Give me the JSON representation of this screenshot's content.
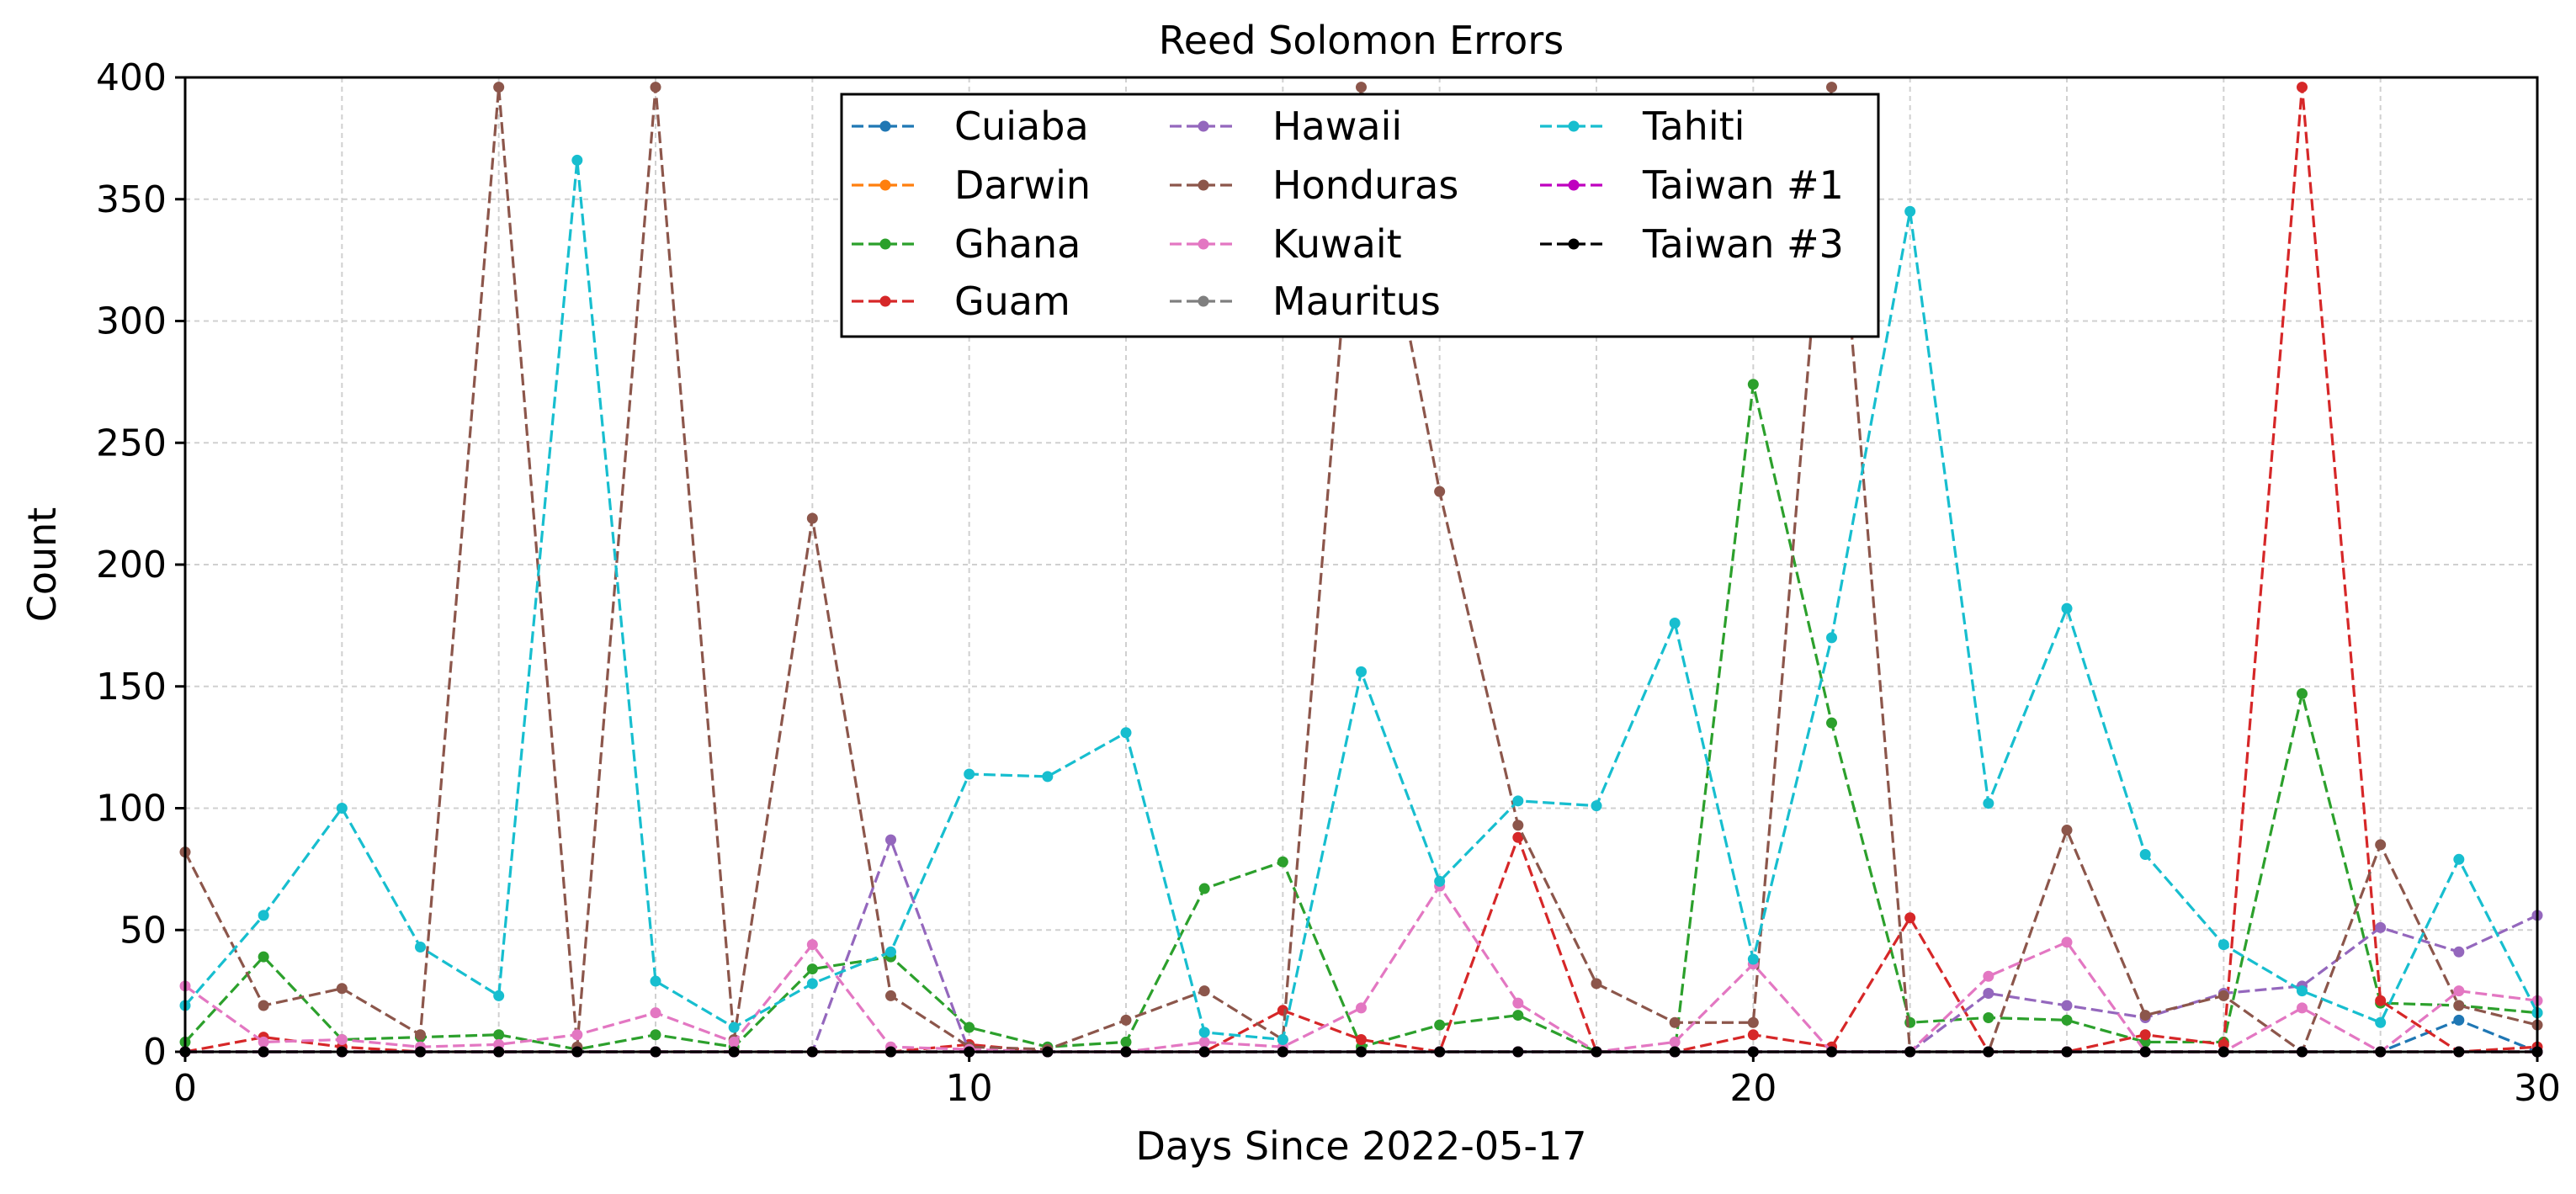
{
  "chart_data": {
    "type": "line",
    "title": "Reed Solomon Errors",
    "xlabel": "Days Since 2022-05-17",
    "ylabel": "Count",
    "xlim": [
      0,
      30
    ],
    "ylim": [
      0,
      400
    ],
    "xticks": [
      0,
      10,
      20,
      30
    ],
    "yticks": [
      0,
      50,
      100,
      150,
      200,
      250,
      300,
      350,
      400
    ],
    "grid": true,
    "legend_position": "top-center",
    "x": [
      0,
      1,
      2,
      3,
      4,
      5,
      6,
      7,
      8,
      9,
      10,
      11,
      12,
      13,
      14,
      15,
      16,
      17,
      18,
      19,
      20,
      21,
      22,
      23,
      24,
      25,
      26,
      27,
      28,
      29,
      30
    ],
    "series": [
      {
        "name": "Cuiaba",
        "color": "#1f77b4",
        "values": [
          0,
          0,
          0,
          0,
          0,
          0,
          0,
          0,
          0,
          0,
          0,
          0,
          0,
          0,
          0,
          0,
          0,
          0,
          0,
          0,
          0,
          0,
          0,
          0,
          0,
          0,
          0,
          0,
          0,
          13,
          0
        ]
      },
      {
        "name": "Darwin",
        "color": "#ff7f0e",
        "values": [
          0,
          0,
          0,
          0,
          0,
          0,
          0,
          0,
          0,
          0,
          0,
          0,
          0,
          0,
          0,
          0,
          0,
          0,
          0,
          0,
          0,
          0,
          0,
          0,
          0,
          0,
          0,
          0,
          0,
          0,
          0
        ]
      },
      {
        "name": "Ghana",
        "color": "#2ca02c",
        "values": [
          4,
          39,
          5,
          6,
          7,
          1,
          7,
          2,
          34,
          39,
          10,
          2,
          4,
          67,
          78,
          2,
          11,
          15,
          0,
          0,
          274,
          135,
          12,
          14,
          13,
          4,
          4,
          147,
          20,
          19,
          16
        ]
      },
      {
        "name": "Guam",
        "color": "#d62728",
        "values": [
          0,
          6,
          2,
          0,
          0,
          0,
          0,
          0,
          0,
          0,
          3,
          0,
          0,
          0,
          17,
          5,
          0,
          88,
          0,
          0,
          7,
          2,
          55,
          0,
          0,
          7,
          3,
          396,
          21,
          0,
          2
        ]
      },
      {
        "name": "Hawaii",
        "color": "#9467bd",
        "values": [
          0,
          0,
          0,
          0,
          0,
          0,
          0,
          0,
          0,
          87,
          0,
          0,
          0,
          0,
          0,
          0,
          0,
          0,
          0,
          0,
          0,
          0,
          0,
          24,
          19,
          14,
          24,
          27,
          51,
          41,
          56
        ]
      },
      {
        "name": "Honduras",
        "color": "#8c564b",
        "values": [
          82,
          19,
          26,
          7,
          396,
          2,
          396,
          5,
          219,
          23,
          2,
          1,
          13,
          25,
          5,
          396,
          230,
          93,
          28,
          12,
          12,
          396,
          0,
          0,
          91,
          15,
          23,
          0,
          85,
          19,
          11
        ]
      },
      {
        "name": "Kuwait",
        "color": "#e377c2",
        "values": [
          27,
          4,
          5,
          2,
          3,
          7,
          16,
          4,
          44,
          2,
          1,
          0,
          0,
          4,
          2,
          18,
          68,
          20,
          0,
          4,
          36,
          0,
          0,
          31,
          45,
          0,
          0,
          18,
          0,
          25,
          21
        ]
      },
      {
        "name": "Mauritus",
        "color": "#7f7f7f",
        "values": [
          0,
          0,
          0,
          0,
          0,
          0,
          0,
          0,
          0,
          0,
          0,
          0,
          0,
          0,
          0,
          0,
          0,
          0,
          0,
          0,
          0,
          0,
          0,
          0,
          0,
          0,
          0,
          0,
          0,
          0,
          0
        ]
      },
      {
        "name": "Tahiti",
        "color": "#17becf",
        "values": [
          19,
          56,
          100,
          43,
          23,
          366,
          29,
          10,
          28,
          41,
          114,
          113,
          131,
          8,
          5,
          156,
          70,
          103,
          101,
          176,
          38,
          170,
          345,
          102,
          182,
          81,
          44,
          25,
          12,
          79,
          16
        ]
      },
      {
        "name": "Taiwan #1",
        "color": "#bf00bf",
        "values": [
          0,
          0,
          0,
          0,
          0,
          0,
          0,
          0,
          0,
          0,
          0,
          0,
          0,
          0,
          0,
          0,
          0,
          0,
          0,
          0,
          0,
          0,
          0,
          0,
          0,
          0,
          0,
          0,
          0,
          0,
          0
        ]
      },
      {
        "name": "Taiwan #3",
        "color": "#000000",
        "values": [
          0,
          0,
          0,
          0,
          0,
          0,
          0,
          0,
          0,
          0,
          0,
          0,
          0,
          0,
          0,
          0,
          0,
          0,
          0,
          0,
          0,
          0,
          0,
          0,
          0,
          0,
          0,
          0,
          0,
          0,
          0
        ]
      }
    ]
  }
}
